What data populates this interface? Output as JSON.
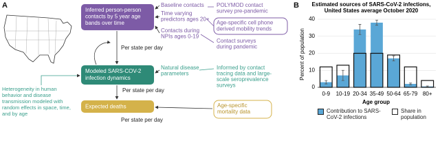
{
  "panel_a": {
    "label": "A",
    "model_boxes": [
      {
        "lines": [
          "Inferred person-person",
          "contacts by 5 year age",
          "bands over time"
        ]
      },
      {
        "lines": [
          "Modeled SARS-COV-2",
          "infection dynamics"
        ]
      },
      {
        "lines": [
          "Expected deaths"
        ]
      }
    ],
    "inputs": [
      {
        "lines": [
          "Baseline contacts"
        ]
      },
      {
        "lines": [
          "Time varying",
          "predictors ages 20+"
        ]
      },
      {
        "lines": [
          "Contacts during",
          "NPIs ages 0-19"
        ]
      },
      {
        "lines": [
          "Natural disease",
          "parameters"
        ]
      }
    ],
    "sources": [
      {
        "lines": [
          "POLYMOD contact",
          "survey pre-pandemic"
        ]
      },
      {
        "lines": [
          "Age-specific cell phone",
          "derived mobility trends"
        ]
      },
      {
        "lines": [
          "Contact surveys",
          "during pandemic"
        ]
      },
      {
        "lines": [
          "Informed by contact",
          "tracing data and large-",
          "scale seroprevalence",
          "surveys"
        ]
      },
      {
        "lines": [
          "Age-specific",
          "mortality data"
        ]
      }
    ],
    "per_state_per_day": [
      "Per state per day",
      "Per state per day",
      "Per state per day"
    ],
    "heterogeneity": [
      "Heterogeneity in human",
      "behavior and disease",
      "transmission modeled with",
      "random effects in space, time,",
      "and by age"
    ]
  },
  "chart_data": {
    "type": "bar",
    "panel_label": "B",
    "title": "Estimated sources of SARS-CoV-2 infections,",
    "subtitle": "United States average October 2020",
    "x_label": "Age group",
    "y_label": "Percent of population",
    "categories": [
      "0-9",
      "10-19",
      "20-34",
      "35-49",
      "50-64",
      "65-79",
      "80+"
    ],
    "series": [
      {
        "name": "Contribution to SARS-CoV-2 infections",
        "color": "#5aa7d6",
        "values": [
          3,
          7,
          34,
          38,
          17,
          2,
          0.5
        ],
        "errors": [
          1,
          3,
          3,
          1.5,
          1.5,
          0.5,
          0.3
        ]
      },
      {
        "name": "Share in population",
        "color": "#ffffff",
        "values": [
          12,
          13,
          20,
          20,
          19,
          12,
          4
        ]
      }
    ],
    "ylim": [
      0,
      40
    ],
    "yticks": [
      0,
      10,
      20,
      30,
      40
    ],
    "grid": true
  }
}
